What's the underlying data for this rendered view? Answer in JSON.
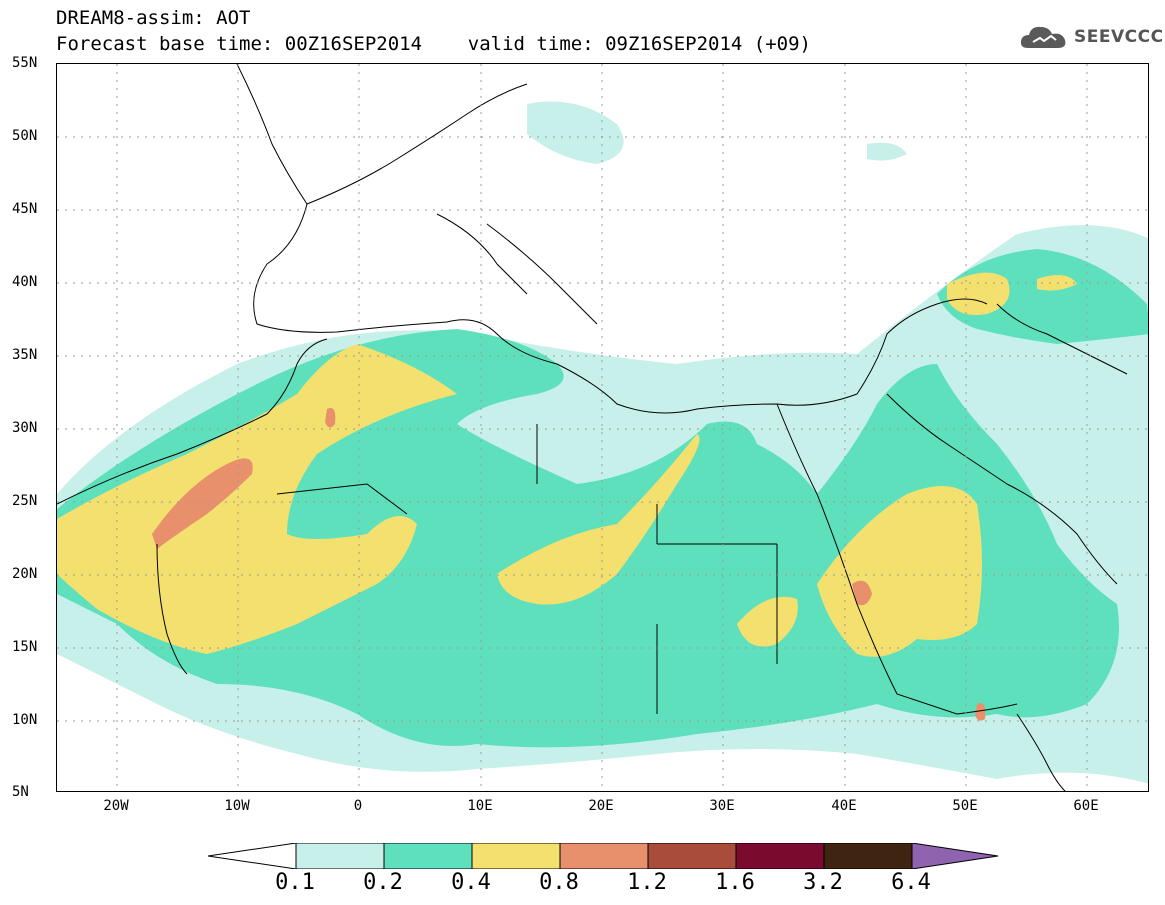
{
  "header": {
    "title_line1": "DREAM8-assim: AOT",
    "title_line2": "Forecast base time: 00Z16SEP2014    valid time: 09Z16SEP2014 (+09)",
    "logo_text": "SEEVCCC"
  },
  "axes": {
    "y_ticks": [
      "55N",
      "50N",
      "45N",
      "40N",
      "35N",
      "30N",
      "25N",
      "20N",
      "15N",
      "10N",
      "5N"
    ],
    "x_ticks": [
      "20W",
      "10W",
      "0",
      "10E",
      "20E",
      "30E",
      "40E",
      "50E",
      "60E"
    ]
  },
  "colorbar": {
    "labels": [
      "0.1",
      "0.2",
      "0.4",
      "0.8",
      "1.2",
      "1.6",
      "3.2",
      "6.4"
    ],
    "colors": [
      "#ffffff",
      "#c8f0ea",
      "#5fe0bd",
      "#f3e06f",
      "#e8906b",
      "#a94c3c",
      "#7a0a2e",
      "#3f2412",
      "#8f63b0"
    ]
  }
}
